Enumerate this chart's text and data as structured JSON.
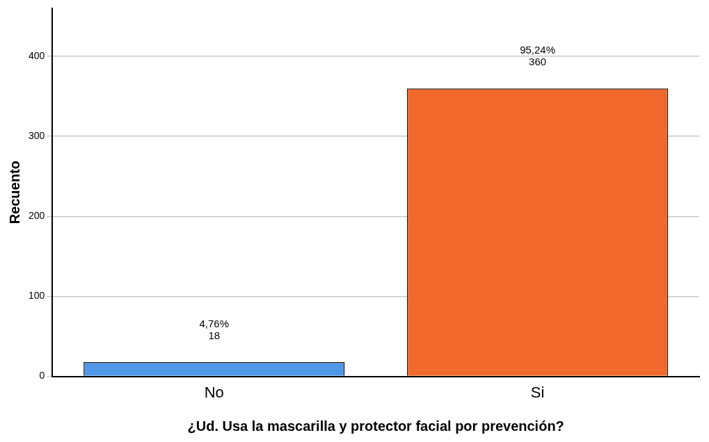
{
  "chart_data": {
    "type": "bar",
    "xlabel": "¿Ud. Usa la mascarilla y protector facial por prevención?",
    "ylabel": "Recuento",
    "categories": [
      "No",
      "Si"
    ],
    "values": [
      18,
      360
    ],
    "colors": [
      "#4f97e8",
      "#f2692d"
    ],
    "value_labels": [
      "4,76%\n18",
      "95,24%\n360"
    ],
    "ylim": [
      0,
      460
    ],
    "yticks": [
      0,
      100,
      200,
      300,
      400
    ],
    "grid": "y",
    "legend": false
  }
}
